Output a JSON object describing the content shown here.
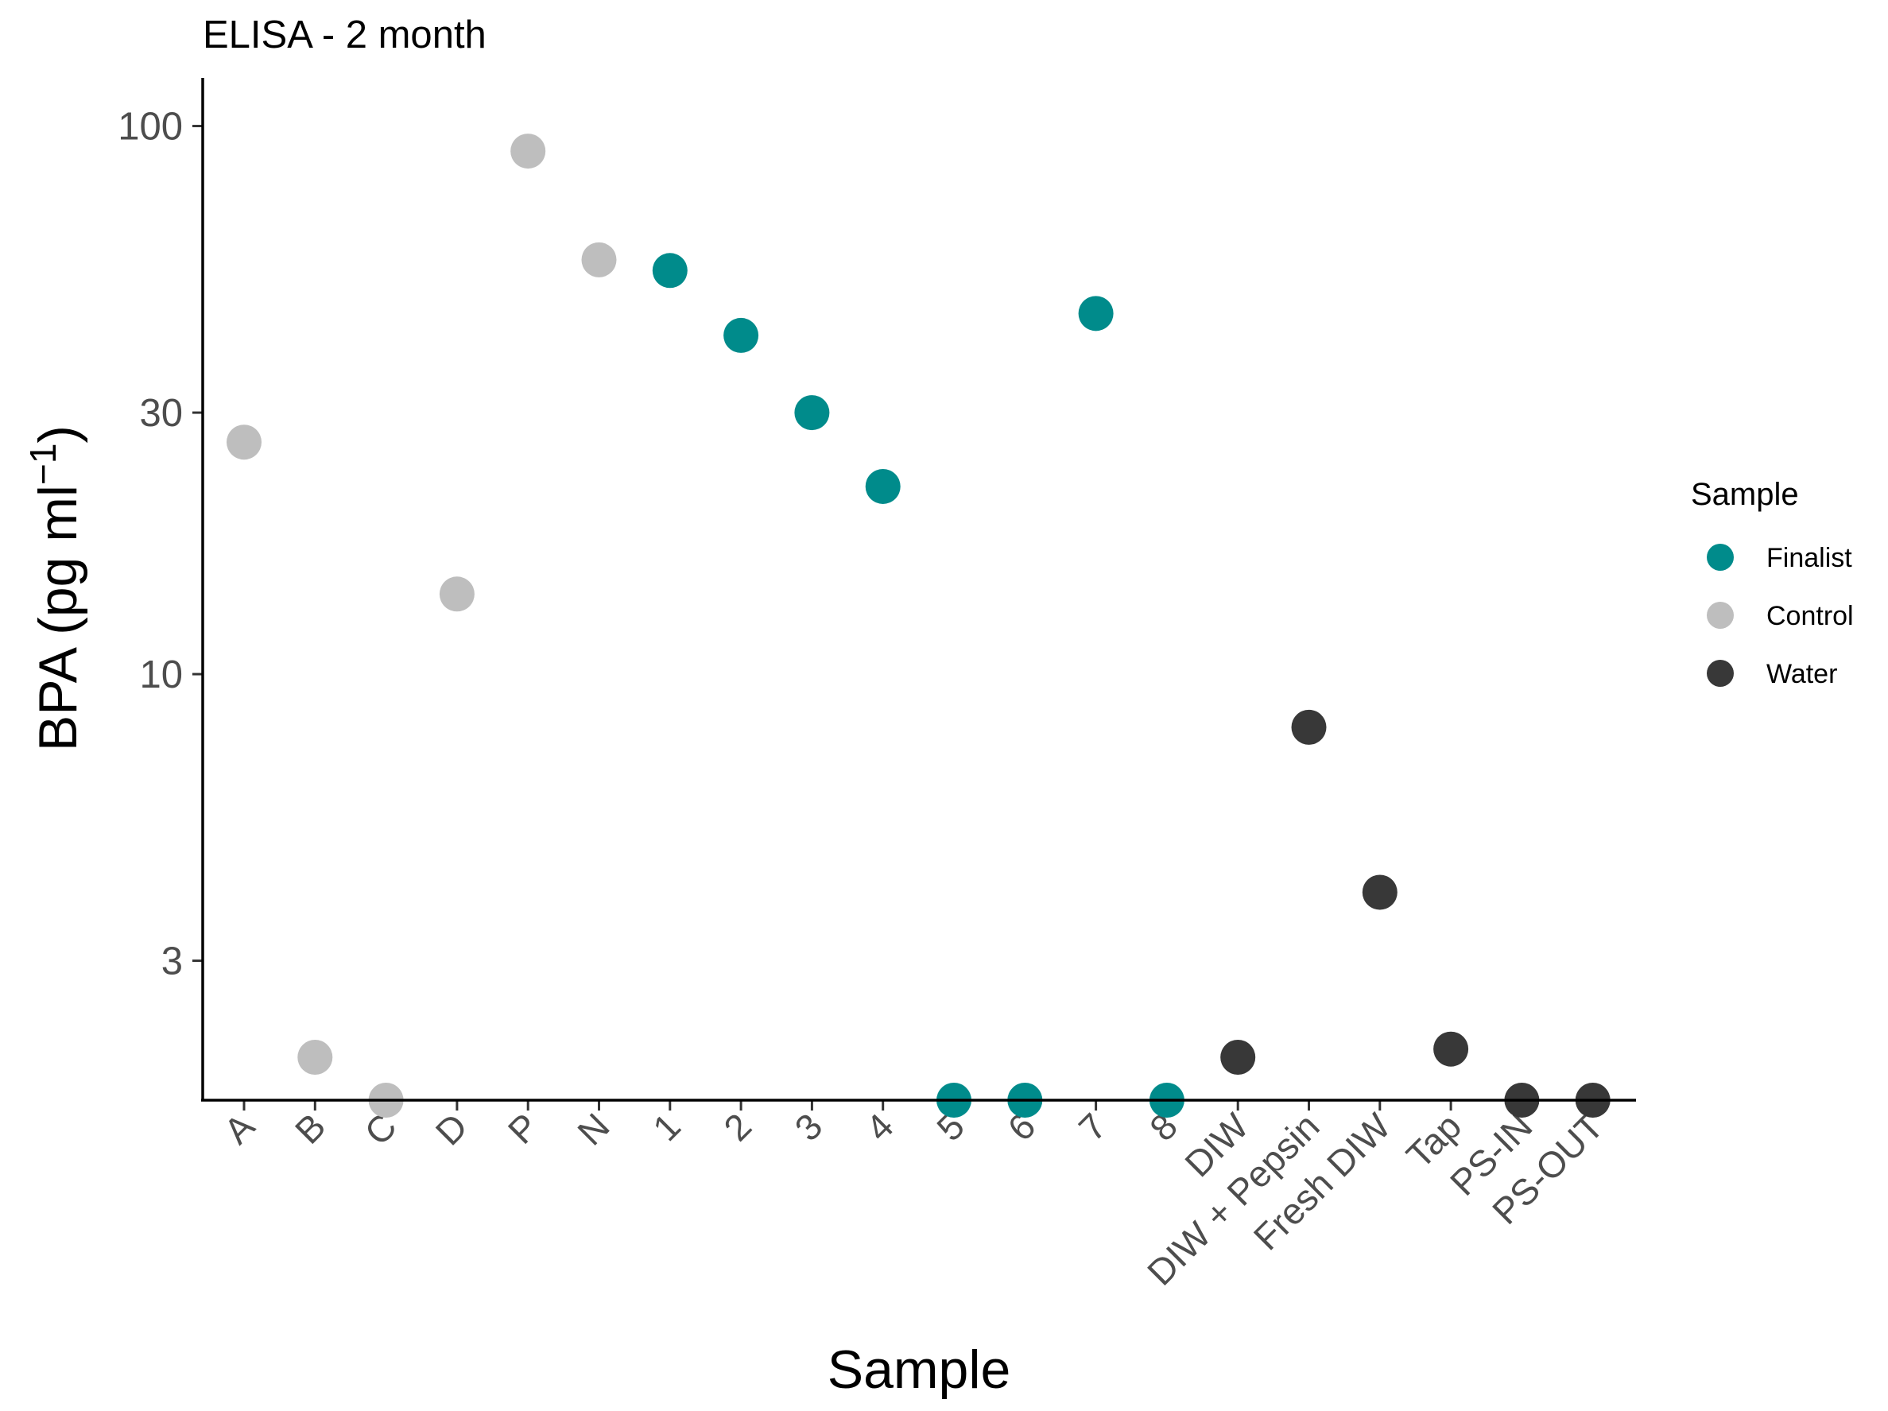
{
  "chart_data": {
    "type": "scatter",
    "title": "ELISA - 2 month",
    "xlabel": "Sample",
    "ylabel": "BPA (pg ml",
    "ylabel_superscript": "−1",
    "ylabel_close": ")",
    "y_scale": "log",
    "ylim": [
      1.67,
      110
    ],
    "y_ticks": [
      3,
      10,
      30,
      100
    ],
    "y_tick_labels": [
      "3",
      "10",
      "30",
      "100"
    ],
    "grid": false,
    "categories": [
      "A",
      "B",
      "C",
      "D",
      "P",
      "N",
      "1",
      "2",
      "3",
      "4",
      "5",
      "6",
      "7",
      "8",
      "DIW",
      "DIW + Pepsin",
      "Fresh DIW",
      "Tap",
      "PS-IN",
      "PS-OUT"
    ],
    "legend": {
      "title": "Sample",
      "position": "right",
      "entries": [
        {
          "name": "Finalist",
          "color": "#008b8b"
        },
        {
          "name": "Control",
          "color": "#bebebe"
        },
        {
          "name": "Water",
          "color": "#383838"
        }
      ]
    },
    "points": [
      {
        "x": "A",
        "y": 26.5,
        "group": "Control"
      },
      {
        "x": "B",
        "y": 2.0,
        "group": "Control"
      },
      {
        "x": "C",
        "y": 1.67,
        "group": "Control"
      },
      {
        "x": "D",
        "y": 14.0,
        "group": "Control"
      },
      {
        "x": "P",
        "y": 90.0,
        "group": "Control"
      },
      {
        "x": "N",
        "y": 57.0,
        "group": "Control"
      },
      {
        "x": "1",
        "y": 54.5,
        "group": "Finalist"
      },
      {
        "x": "2",
        "y": 41.5,
        "group": "Finalist"
      },
      {
        "x": "3",
        "y": 30.0,
        "group": "Finalist"
      },
      {
        "x": "4",
        "y": 22.0,
        "group": "Finalist"
      },
      {
        "x": "5",
        "y": 1.67,
        "group": "Finalist"
      },
      {
        "x": "6",
        "y": 1.67,
        "group": "Finalist"
      },
      {
        "x": "7",
        "y": 45.5,
        "group": "Finalist"
      },
      {
        "x": "8",
        "y": 1.67,
        "group": "Finalist"
      },
      {
        "x": "DIW",
        "y": 2.0,
        "group": "Water"
      },
      {
        "x": "DIW + Pepsin",
        "y": 8.0,
        "group": "Water"
      },
      {
        "x": "Fresh DIW",
        "y": 4.0,
        "group": "Water"
      },
      {
        "x": "Tap",
        "y": 2.07,
        "group": "Water"
      },
      {
        "x": "PS-IN",
        "y": 1.67,
        "group": "Water"
      },
      {
        "x": "PS-OUT",
        "y": 1.67,
        "group": "Water"
      }
    ]
  }
}
